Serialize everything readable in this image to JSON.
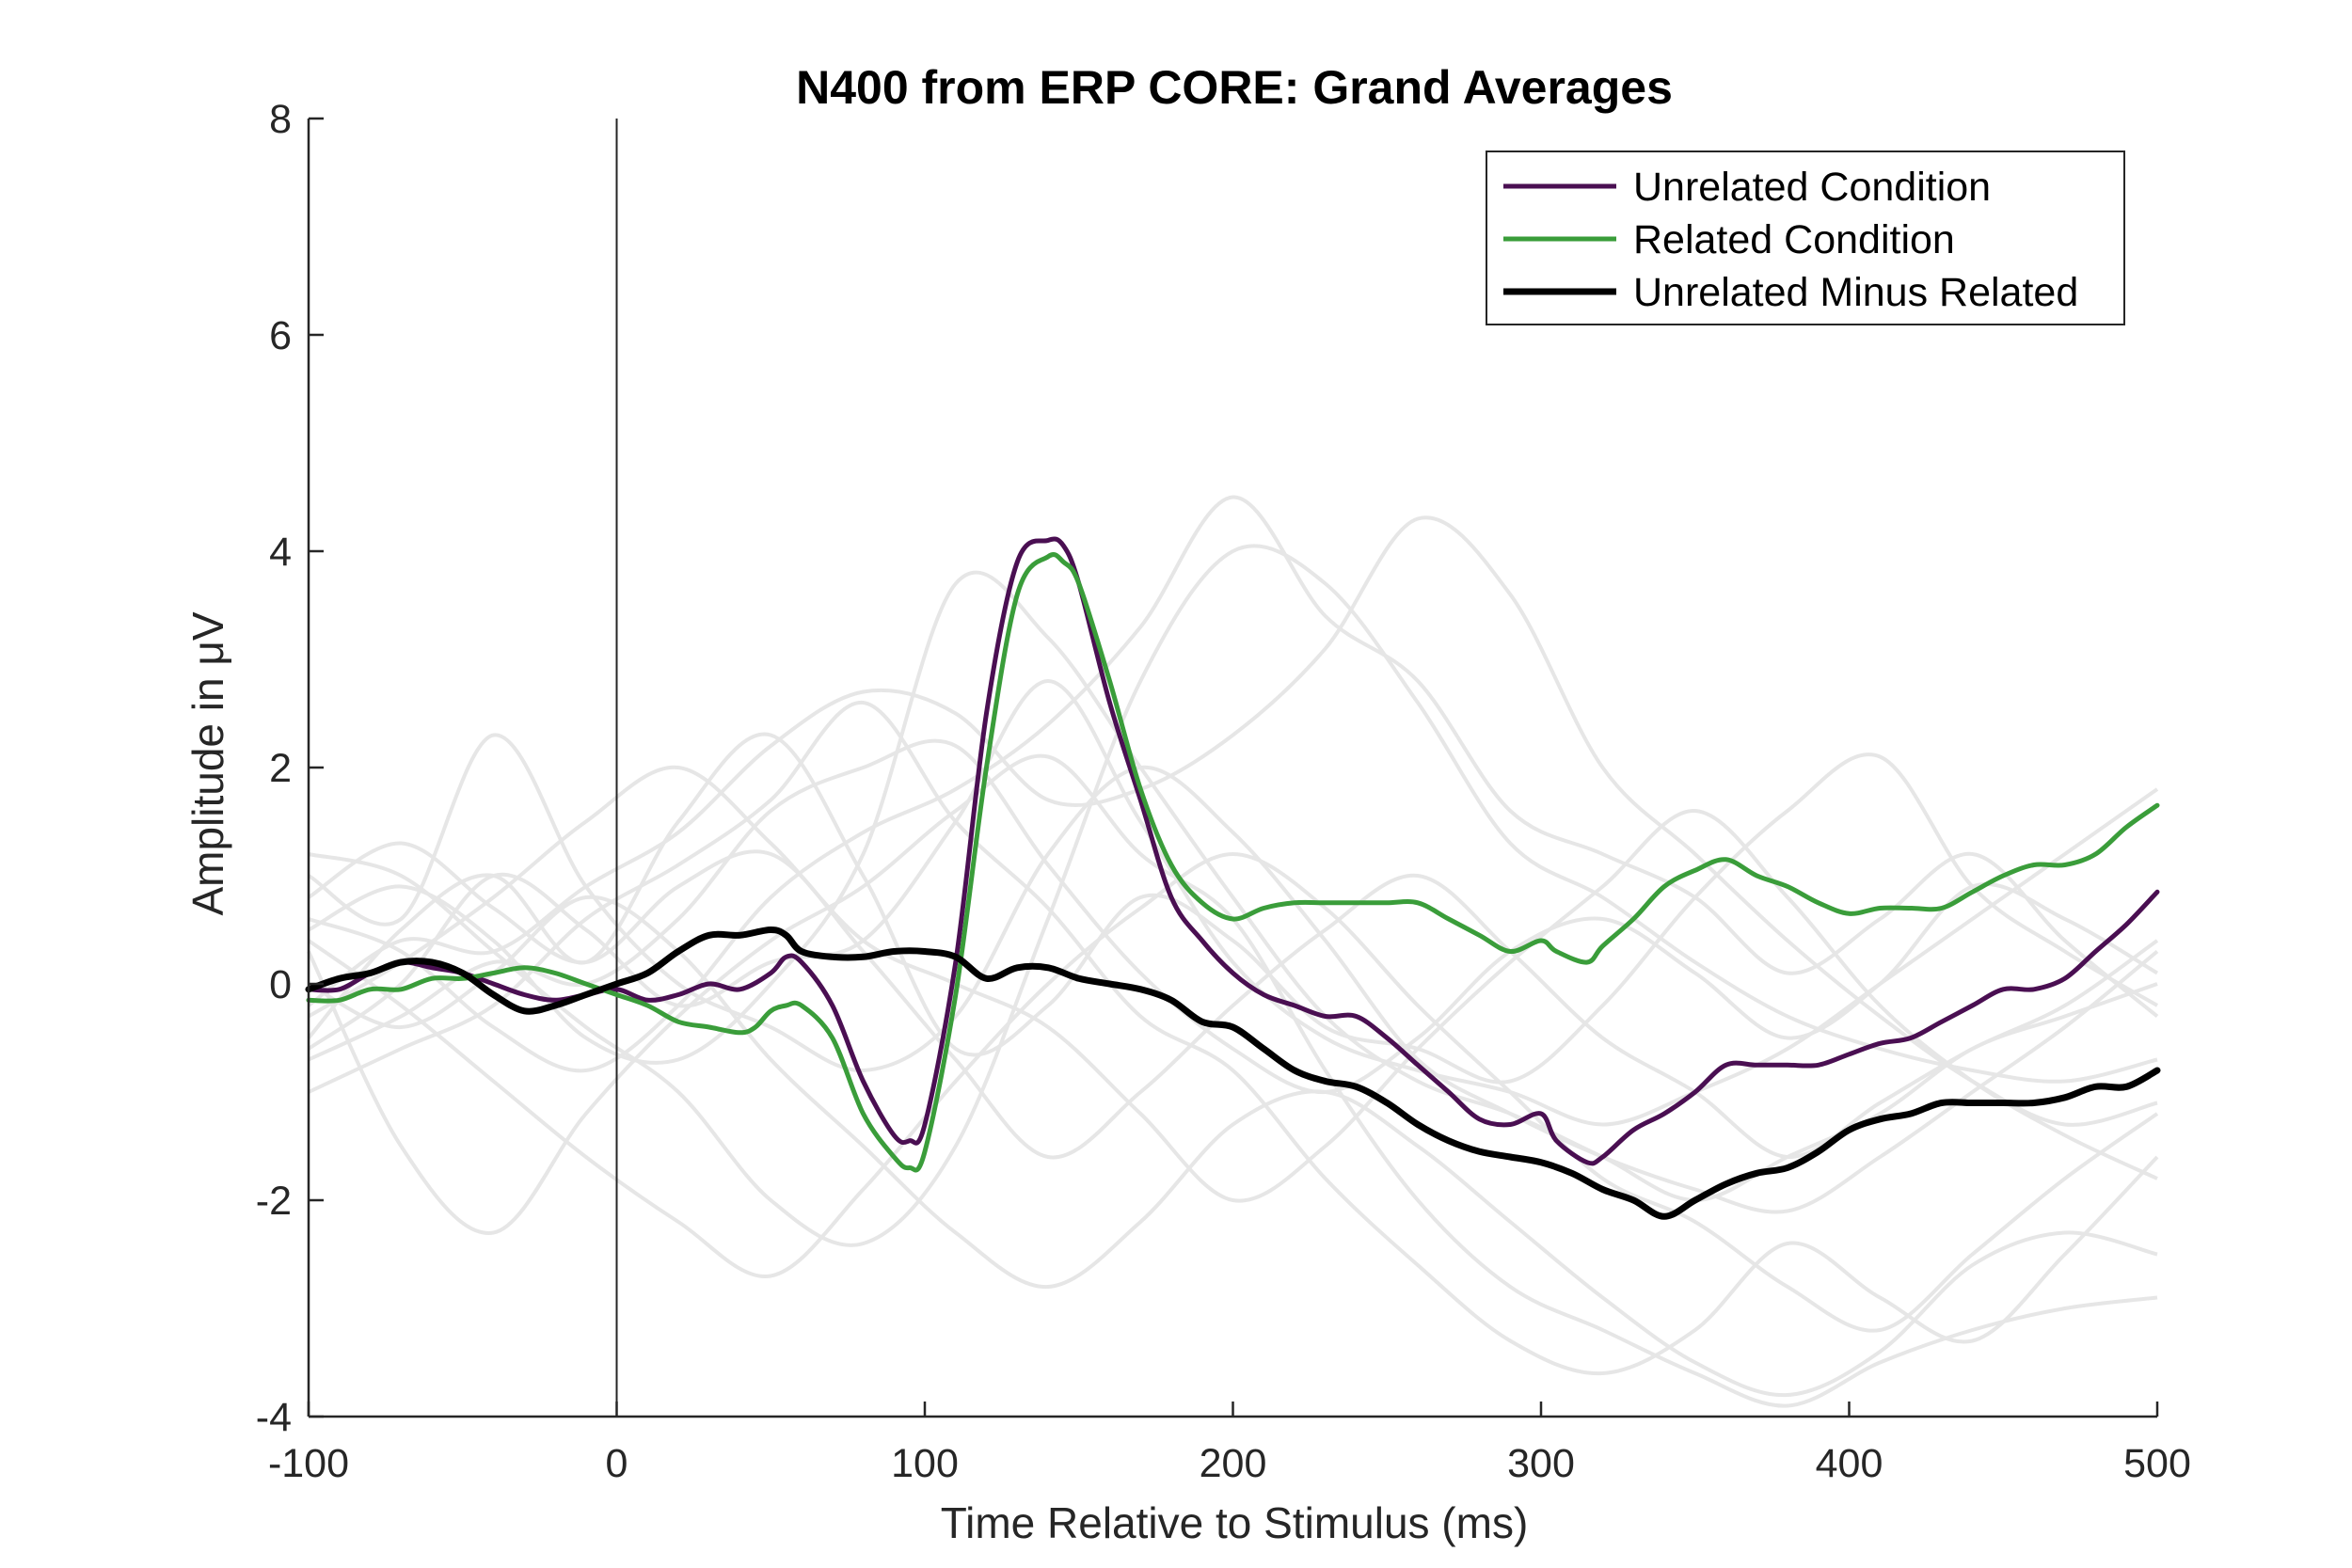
{
  "chart_data": {
    "type": "line",
    "title": "N400 from ERP CORE: Grand Averages",
    "xlabel": "Time Relative to Stimulus (ms)",
    "ylabel": "Amplitude in μV",
    "xlim": [
      -100,
      500
    ],
    "ylim": [
      -4,
      8
    ],
    "xticks": [
      "-100",
      "0",
      "100",
      "200",
      "300",
      "400",
      "500"
    ],
    "yticks": [
      "-4",
      "-2",
      "0",
      "2",
      "4",
      "6",
      "8"
    ],
    "grid": false,
    "legend_position": "top-right",
    "stimulus_marker_x": 0,
    "individual_subject_color": "#e6e6e6",
    "series": [
      {
        "name": "Unrelated Condition",
        "color": "#4a0f52",
        "x": [
          -100,
          -90,
          -80,
          -70,
          -60,
          -50,
          -40,
          -30,
          -20,
          -10,
          0,
          10,
          20,
          30,
          40,
          50,
          55,
          60,
          70,
          80,
          90,
          95,
          100,
          110,
          120,
          130,
          140,
          145,
          150,
          160,
          170,
          180,
          190,
          200,
          210,
          220,
          230,
          240,
          250,
          260,
          270,
          280,
          290,
          300,
          305,
          315,
          320,
          330,
          340,
          350,
          360,
          370,
          380,
          390,
          400,
          410,
          420,
          430,
          440,
          450,
          460,
          470,
          480,
          490,
          500
        ],
        "values": [
          -0.05,
          -0.05,
          0.1,
          0.2,
          0.15,
          0.1,
          0.0,
          -0.1,
          -0.15,
          -0.1,
          -0.05,
          -0.15,
          -0.1,
          0.0,
          -0.05,
          0.1,
          0.25,
          0.2,
          -0.2,
          -0.9,
          -1.4,
          -1.45,
          -1.3,
          0.2,
          2.5,
          3.9,
          4.1,
          4.05,
          3.7,
          2.6,
          1.7,
          0.8,
          0.4,
          0.1,
          -0.1,
          -0.2,
          -0.3,
          -0.3,
          -0.5,
          -0.75,
          -1.0,
          -1.25,
          -1.3,
          -1.2,
          -1.45,
          -1.65,
          -1.6,
          -1.35,
          -1.2,
          -1.0,
          -0.75,
          -0.75,
          -0.75,
          -0.75,
          -0.65,
          -0.55,
          -0.5,
          -0.35,
          -0.2,
          -0.05,
          -0.05,
          0.05,
          0.3,
          0.55,
          0.85
        ]
      },
      {
        "name": "Related Condition",
        "color": "#3a9d3a",
        "x": [
          -100,
          -90,
          -80,
          -70,
          -60,
          -50,
          -40,
          -30,
          -20,
          -10,
          0,
          10,
          20,
          30,
          40,
          45,
          50,
          55,
          60,
          70,
          80,
          90,
          95,
          100,
          110,
          120,
          130,
          140,
          145,
          150,
          160,
          170,
          180,
          190,
          200,
          210,
          220,
          230,
          240,
          250,
          260,
          270,
          280,
          290,
          300,
          305,
          315,
          320,
          330,
          340,
          350,
          360,
          370,
          380,
          390,
          400,
          410,
          420,
          430,
          440,
          450,
          460,
          470,
          480,
          490,
          500
        ],
        "values": [
          -0.15,
          -0.15,
          -0.05,
          -0.05,
          0.05,
          0.05,
          0.1,
          0.15,
          0.1,
          0.0,
          -0.1,
          -0.2,
          -0.35,
          -0.4,
          -0.45,
          -0.4,
          -0.25,
          -0.2,
          -0.2,
          -0.5,
          -1.2,
          -1.6,
          -1.7,
          -1.55,
          -0.1,
          2.0,
          3.6,
          3.95,
          3.9,
          3.7,
          2.8,
          1.8,
          1.1,
          0.75,
          0.6,
          0.7,
          0.75,
          0.75,
          0.75,
          0.75,
          0.75,
          0.6,
          0.45,
          0.3,
          0.4,
          0.3,
          0.2,
          0.35,
          0.6,
          0.9,
          1.05,
          1.15,
          1.0,
          0.9,
          0.75,
          0.65,
          0.7,
          0.7,
          0.7,
          0.85,
          1.0,
          1.1,
          1.1,
          1.2,
          1.45,
          1.65
        ]
      },
      {
        "name": "Unrelated Minus Related",
        "color": "#000000",
        "x": [
          -100,
          -90,
          -80,
          -70,
          -60,
          -50,
          -40,
          -30,
          -20,
          -10,
          0,
          10,
          20,
          30,
          40,
          50,
          55,
          60,
          70,
          80,
          90,
          100,
          110,
          120,
          130,
          140,
          150,
          160,
          170,
          180,
          190,
          200,
          210,
          220,
          230,
          240,
          250,
          260,
          270,
          280,
          290,
          300,
          310,
          320,
          330,
          340,
          350,
          360,
          370,
          380,
          390,
          400,
          410,
          420,
          430,
          440,
          450,
          460,
          470,
          480,
          490,
          500
        ],
        "values": [
          -0.05,
          0.05,
          0.1,
          0.2,
          0.2,
          0.1,
          -0.1,
          -0.25,
          -0.2,
          -0.1,
          0.0,
          0.1,
          0.3,
          0.45,
          0.45,
          0.5,
          0.45,
          0.3,
          0.25,
          0.25,
          0.3,
          0.3,
          0.25,
          0.05,
          0.15,
          0.15,
          0.05,
          0.0,
          -0.05,
          -0.15,
          -0.35,
          -0.4,
          -0.6,
          -0.8,
          -0.9,
          -0.95,
          -1.1,
          -1.3,
          -1.45,
          -1.55,
          -1.6,
          -1.65,
          -1.75,
          -1.9,
          -2.0,
          -2.15,
          -2.0,
          -1.85,
          -1.75,
          -1.7,
          -1.55,
          -1.35,
          -1.25,
          -1.2,
          -1.1,
          -1.1,
          -1.1,
          -1.1,
          -1.05,
          -0.95,
          -0.95,
          -0.8
        ]
      }
    ],
    "individual_subjects": [
      [
        -0.6,
        0.0,
        1.0,
        0.5,
        -0.2,
        0.2,
        0.4,
        1.5,
        2.8,
        1.5,
        0.2,
        -0.5,
        -0.8,
        -1.0,
        -1.3,
        -1.0,
        -0.6,
        0.0,
        0.6,
        1.2,
        1.8
      ],
      [
        1.0,
        0.6,
        2.3,
        0.9,
        0.0,
        -0.4,
        -0.8,
        -0.3,
        1.2,
        2.0,
        1.4,
        0.4,
        -0.7,
        -1.2,
        -1.6,
        -1.9,
        -2.1,
        -1.6,
        -1.0,
        -0.4,
        0.3
      ],
      [
        0.3,
        -1.5,
        -2.3,
        -1.2,
        -0.3,
        0.4,
        0.9,
        1.6,
        2.1,
        1.2,
        0.6,
        -0.8,
        -2.0,
        -2.8,
        -3.2,
        -3.6,
        -3.9,
        -3.5,
        -3.2,
        -3.0,
        -2.9
      ],
      [
        -0.5,
        0.5,
        1.0,
        0.2,
        1.5,
        2.3,
        1.0,
        -0.6,
        -0.2,
        0.8,
        0.4,
        -0.4,
        -0.6,
        -0.9,
        -0.2,
        0.8,
        1.6,
        2.1,
        0.9,
        0.3,
        -0.2
      ],
      [
        0.5,
        0.9,
        0.4,
        -0.5,
        -0.7,
        0.0,
        1.2,
        3.7,
        3.2,
        2.0,
        0.8,
        -0.3,
        -0.9,
        -1.2,
        -1.6,
        -2.0,
        -1.6,
        -1.2,
        -0.6,
        -0.3,
        0.0
      ],
      [
        1.2,
        1.0,
        0.3,
        -0.4,
        -1.0,
        -2.0,
        -2.4,
        -1.5,
        0.6,
        2.8,
        4.0,
        3.7,
        2.6,
        1.3,
        0.8,
        0.2,
        -0.3,
        -0.6,
        -0.8,
        -0.9,
        -0.7
      ],
      [
        -0.2,
        0.4,
        0.3,
        0.9,
        1.4,
        2.2,
        2.7,
        2.5,
        1.7,
        1.8,
        2.3,
        3.1,
        4.3,
        3.6,
        2.0,
        1.2,
        0.4,
        -0.3,
        -0.9,
        -1.3,
        -1.1
      ],
      [
        0.6,
        0.3,
        -0.4,
        -0.8,
        -0.2,
        0.8,
        1.4,
        1.8,
        2.4,
        3.3,
        4.5,
        3.4,
        2.8,
        1.6,
        1.2,
        0.8,
        0.1,
        0.6,
        1.2,
        0.4,
        -0.3
      ],
      [
        -1.0,
        -0.6,
        -0.2,
        0.6,
        1.1,
        1.7,
        2.6,
        1.5,
        0.7,
        -0.3,
        -0.8,
        -1.8,
        -2.6,
        -3.3,
        -3.6,
        -3.2,
        -2.4,
        -2.9,
        -3.3,
        -2.5,
        -1.6
      ],
      [
        0.0,
        -0.4,
        0.1,
        0.8,
        0.3,
        -0.7,
        -1.5,
        -2.3,
        -2.8,
        -2.2,
        -1.3,
        -1.0,
        -1.5,
        -2.2,
        -2.9,
        -3.5,
        -3.8,
        -3.4,
        -2.6,
        -2.3,
        -2.5
      ],
      [
        0.8,
        1.3,
        0.7,
        0.2,
        0.9,
        1.2,
        0.3,
        -0.7,
        -1.6,
        -1.0,
        -0.2,
        0.5,
        1.0,
        0.3,
        -0.5,
        -1.0,
        -1.6,
        -1.1,
        -0.6,
        -0.2,
        0.4
      ],
      [
        -0.3,
        0.2,
        0.8,
        1.5,
        2.0,
        1.3,
        0.4,
        0.0,
        -0.4,
        -1.2,
        -2.0,
        -1.5,
        -0.6,
        0.2,
        0.9,
        1.6,
        0.8,
        -0.2,
        -0.9,
        -1.4,
        -1.8
      ],
      [
        0.4,
        -0.2,
        -0.9,
        -1.6,
        -2.2,
        -2.7,
        -1.9,
        -0.9,
        0.0,
        0.7,
        1.2,
        0.7,
        -0.2,
        -1.0,
        -1.8,
        -2.2,
        -2.8,
        -3.2,
        -2.5,
        -1.8,
        -1.2
      ],
      [
        -0.7,
        -0.3,
        0.2,
        0.0,
        0.6,
        1.6,
        2.0,
        2.2,
        1.1,
        0.1,
        -0.6,
        -1.0,
        -0.5,
        0.3,
        0.6,
        0.1,
        -0.5,
        0.0,
        0.9,
        0.6,
        0.1
      ]
    ]
  }
}
